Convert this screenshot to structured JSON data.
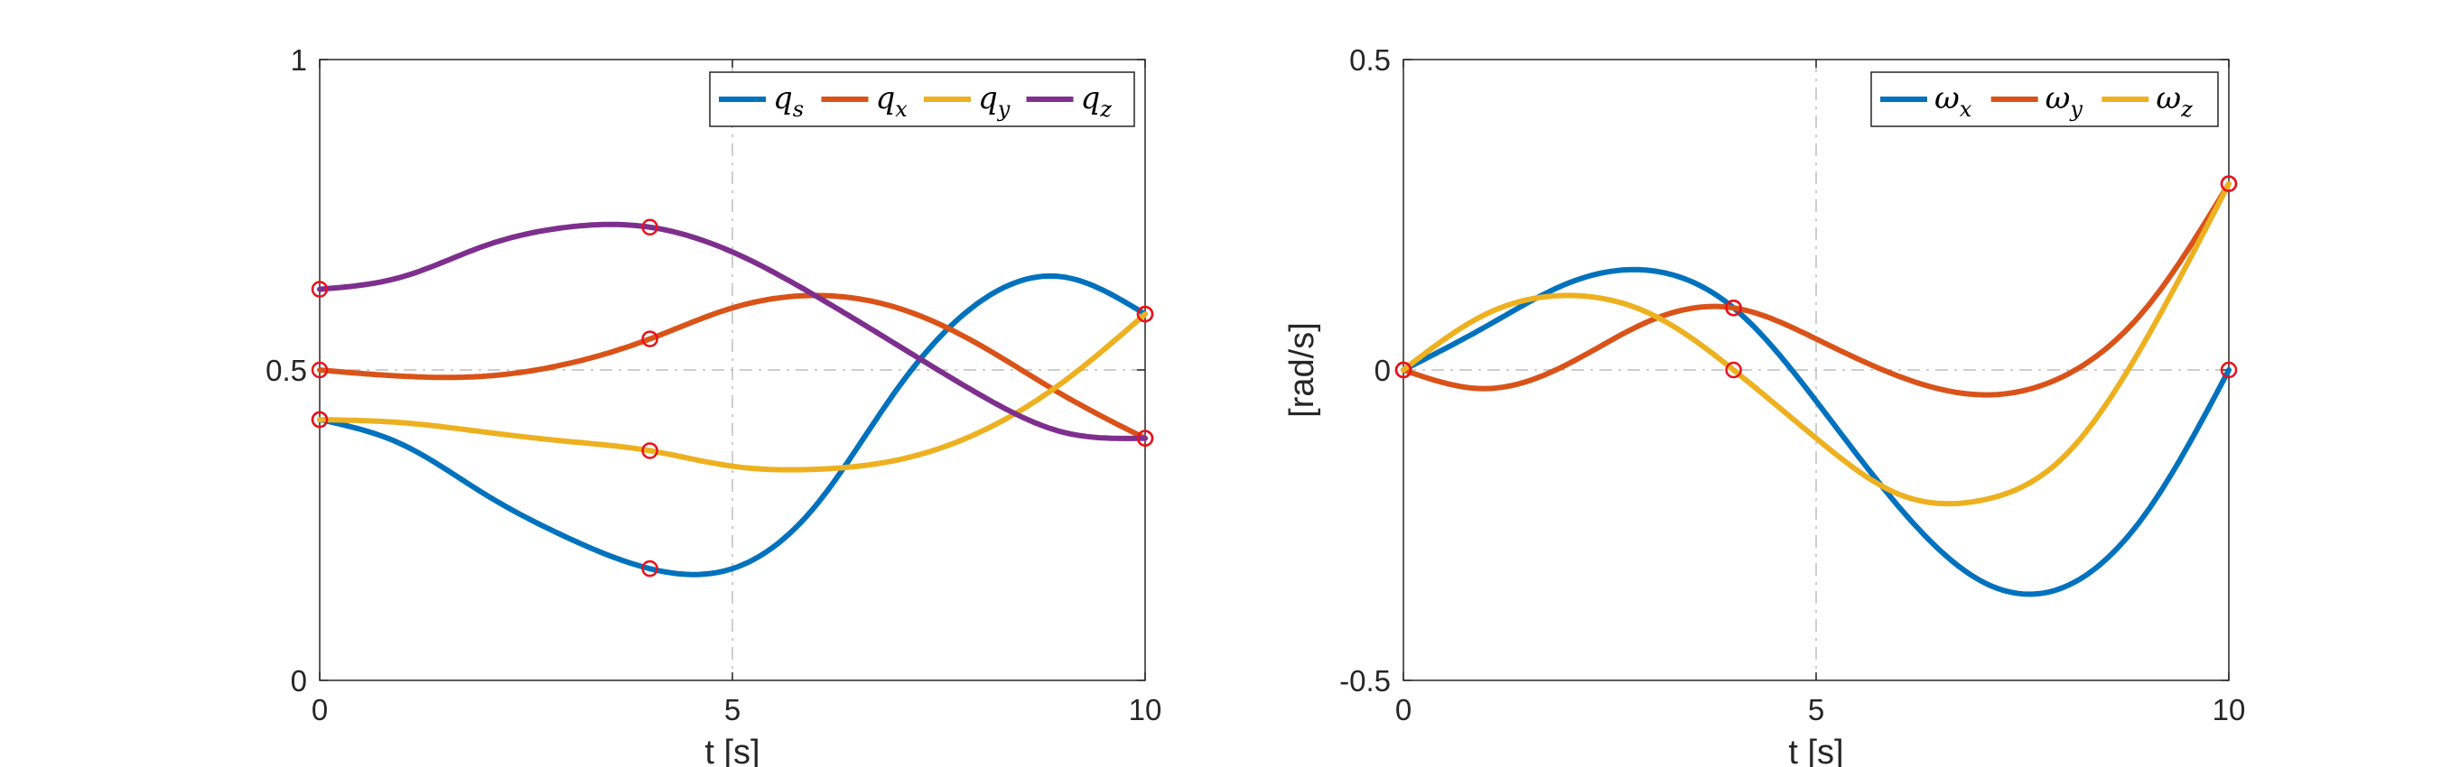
{
  "chart_data": [
    {
      "type": "line",
      "xlabel": "t [s]",
      "ylabel": "",
      "xlim": [
        0,
        10
      ],
      "ylim": [
        0,
        1
      ],
      "xticks": [
        0,
        5,
        10
      ],
      "xtick_labels": [
        "0",
        "5",
        "10"
      ],
      "yticks": [
        0,
        0.5,
        1
      ],
      "ytick_labels": [
        "0",
        "0.5",
        "1"
      ],
      "grid": "dash-dot at middle ticks",
      "legend_position": "top-right",
      "markers_at_t": [
        0,
        4,
        10
      ],
      "series": [
        {
          "name": "q",
          "sub": "s",
          "color": "#0072BD",
          "x": [
            0,
            1,
            2,
            3,
            4,
            5,
            6,
            7,
            8,
            9,
            10
          ],
          "y": [
            0.42,
            0.38,
            0.3,
            0.23,
            0.18,
            0.18,
            0.28,
            0.47,
            0.61,
            0.65,
            0.59
          ]
        },
        {
          "name": "q",
          "sub": "x",
          "color": "#D95319",
          "x": [
            0,
            1,
            2,
            3,
            4,
            5,
            6,
            7,
            8,
            9,
            10
          ],
          "y": [
            0.5,
            0.49,
            0.49,
            0.51,
            0.55,
            0.6,
            0.62,
            0.6,
            0.54,
            0.46,
            0.39
          ]
        },
        {
          "name": "q",
          "sub": "y",
          "color": "#EDB120",
          "x": [
            0,
            1,
            2,
            3,
            4,
            5,
            6,
            7,
            8,
            9,
            10
          ],
          "y": [
            0.42,
            0.415,
            0.4,
            0.385,
            0.37,
            0.345,
            0.34,
            0.355,
            0.4,
            0.48,
            0.59
          ]
        },
        {
          "name": "q",
          "sub": "z",
          "color": "#7E2F8E",
          "x": [
            0,
            1,
            2,
            3,
            4,
            5,
            6,
            7,
            8,
            9,
            10
          ],
          "y": [
            0.63,
            0.65,
            0.7,
            0.73,
            0.73,
            0.69,
            0.62,
            0.54,
            0.46,
            0.4,
            0.39
          ]
        }
      ]
    },
    {
      "type": "line",
      "xlabel": "t [s]",
      "ylabel": "[rad/s]",
      "xlim": [
        0,
        10
      ],
      "ylim": [
        -0.5,
        0.5
      ],
      "xticks": [
        0,
        5,
        10
      ],
      "xtick_labels": [
        "0",
        "5",
        "10"
      ],
      "yticks": [
        -0.5,
        0,
        0.5
      ],
      "ytick_labels": [
        "-0.5",
        "0",
        "0.5"
      ],
      "grid": "dash-dot at middle ticks",
      "legend_position": "top-right",
      "markers_at_t": [
        0,
        4,
        10
      ],
      "series": [
        {
          "name": "ω",
          "sub": "x",
          "color": "#0072BD",
          "x": [
            0,
            1,
            2,
            3,
            4,
            5,
            6,
            7,
            8,
            9,
            10
          ],
          "y": [
            0.0,
            0.07,
            0.14,
            0.16,
            0.1,
            -0.05,
            -0.22,
            -0.34,
            -0.35,
            -0.23,
            0.0
          ]
        },
        {
          "name": "ω",
          "sub": "y",
          "color": "#D95319",
          "x": [
            0,
            1,
            2,
            3,
            4,
            5,
            6,
            7,
            8,
            9,
            10
          ],
          "y": [
            0.0,
            -0.03,
            0.01,
            0.08,
            0.1,
            0.05,
            -0.01,
            -0.04,
            -0.01,
            0.1,
            0.3
          ]
        },
        {
          "name": "ω",
          "sub": "z",
          "color": "#EDB120",
          "x": [
            0,
            1,
            2,
            3,
            4,
            5,
            6,
            7,
            8,
            9,
            10
          ],
          "y": [
            0.0,
            0.09,
            0.12,
            0.09,
            0.0,
            -0.11,
            -0.2,
            -0.21,
            -0.14,
            0.05,
            0.3
          ]
        }
      ]
    }
  ]
}
